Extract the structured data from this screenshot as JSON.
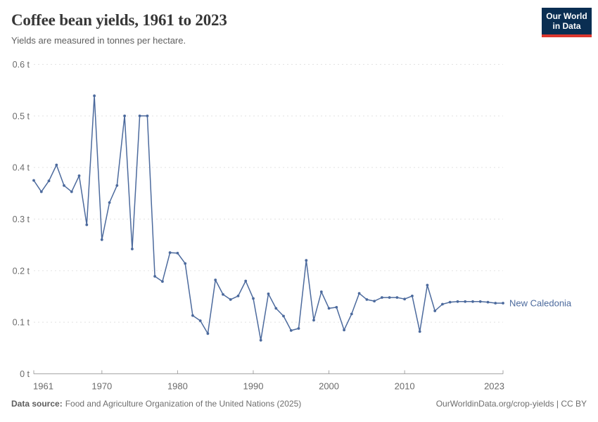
{
  "header": {
    "title": "Coffee bean yields, 1961 to 2023",
    "subtitle": "Yields are measured in tonnes per hectare.",
    "logo": {
      "line1": "Our World",
      "line2": "in Data"
    }
  },
  "chart_data": {
    "type": "line",
    "title": "Coffee bean yields, 1961 to 2023",
    "ylabel": "tonnes per hectare",
    "unit_suffix": " t",
    "xlim": [
      1961,
      2023
    ],
    "ylim": [
      0,
      0.6
    ],
    "xticks": [
      1961,
      1970,
      1980,
      1990,
      2000,
      2010,
      2023
    ],
    "yticks": [
      0,
      0.1,
      0.2,
      0.3,
      0.4,
      0.5,
      0.6
    ],
    "grid": "dashed-horizontal",
    "legend_position": "end-of-line",
    "x": [
      1961,
      1962,
      1963,
      1964,
      1965,
      1966,
      1967,
      1968,
      1969,
      1970,
      1971,
      1972,
      1973,
      1974,
      1975,
      1976,
      1977,
      1978,
      1979,
      1980,
      1981,
      1982,
      1983,
      1984,
      1985,
      1986,
      1987,
      1988,
      1989,
      1990,
      1991,
      1992,
      1993,
      1994,
      1995,
      1996,
      1997,
      1998,
      1999,
      2000,
      2001,
      2002,
      2003,
      2004,
      2005,
      2006,
      2007,
      2008,
      2009,
      2010,
      2011,
      2012,
      2013,
      2014,
      2015,
      2016,
      2017,
      2018,
      2019,
      2020,
      2021,
      2022,
      2023
    ],
    "series": [
      {
        "name": "New Caledonia",
        "color": "#4C6A9D",
        "values": [
          0.375,
          0.353,
          0.374,
          0.405,
          0.365,
          0.353,
          0.384,
          0.289,
          0.539,
          0.26,
          0.332,
          0.365,
          0.5,
          0.242,
          0.5,
          0.5,
          0.189,
          0.179,
          0.235,
          0.234,
          0.214,
          0.113,
          0.103,
          0.078,
          0.182,
          0.154,
          0.144,
          0.151,
          0.18,
          0.146,
          0.065,
          0.155,
          0.127,
          0.112,
          0.084,
          0.088,
          0.22,
          0.104,
          0.159,
          0.127,
          0.129,
          0.085,
          0.116,
          0.156,
          0.144,
          0.141,
          0.148,
          0.148,
          0.148,
          0.145,
          0.151,
          0.082,
          0.172,
          0.122,
          0.135,
          0.139,
          0.14,
          0.14,
          0.14,
          0.14,
          0.139,
          0.137,
          0.137
        ]
      }
    ]
  },
  "footer": {
    "source_label": "Data source:",
    "source_text": "Food and Agriculture Organization of the United Nations (2025)",
    "credit": "OurWorldinData.org/crop-yields | CC BY"
  },
  "colors": {
    "line": "#4C6A9D",
    "series_label": "#4C6A9D",
    "grid": "#E2E2E2",
    "axis": "#A5A5A5",
    "tick_label": "#6B6B6B",
    "title": "#373737",
    "subtitle": "#5E5E5E",
    "footer": "#6E6E6E",
    "logo_bg": "#0A2E52",
    "logo_accent": "#DC372E"
  }
}
